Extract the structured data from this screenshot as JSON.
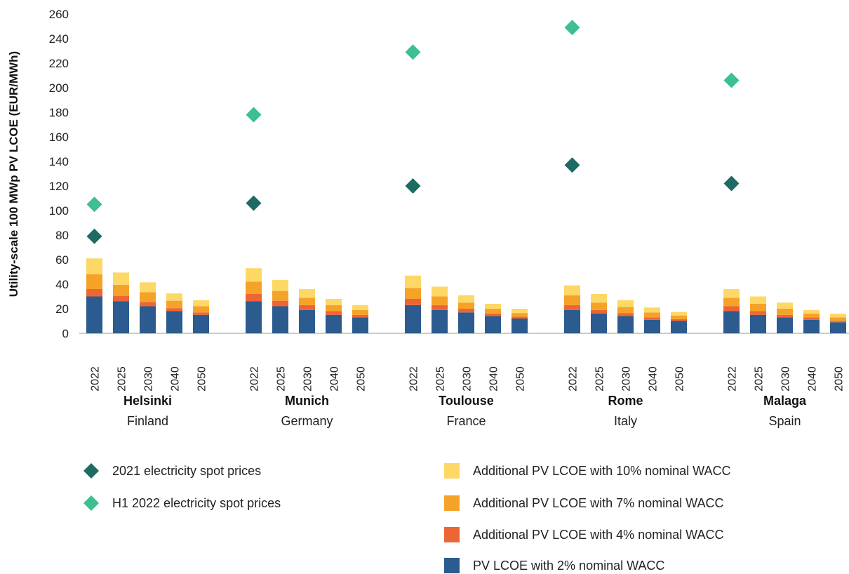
{
  "chart_data": {
    "type": "bar",
    "stacked": true,
    "ylabel": "Utility-scale 100 MWp PV LCOE (EUR/MWh)",
    "ylim": [
      0,
      260
    ],
    "yticks": [
      0,
      20,
      40,
      60,
      80,
      100,
      120,
      140,
      160,
      180,
      200,
      220,
      240,
      260
    ],
    "years": [
      "2022",
      "2025",
      "2030",
      "2040",
      "2050"
    ],
    "colors": {
      "base": "#2b5b8f",
      "add4": "#ee6535",
      "add7": "#f5a229",
      "add10": "#fdd867",
      "spot2021": "#1e6b64",
      "spotH1_2022": "#3dbf8f"
    },
    "groups": [
      {
        "city": "Helsinki",
        "country": "Finland",
        "base": [
          30,
          26,
          22,
          18,
          15
        ],
        "add4": [
          6,
          4.5,
          3.5,
          2.5,
          2
        ],
        "add7": [
          12,
          9,
          8,
          6,
          5
        ],
        "add10": [
          13,
          10,
          8,
          6,
          5
        ],
        "spot2021": 79,
        "spotH1_2022": 105
      },
      {
        "city": "Munich",
        "country": "Germany",
        "base": [
          26,
          22,
          19,
          15,
          13
        ],
        "add4": [
          6,
          4.5,
          4,
          3,
          2
        ],
        "add7": [
          10,
          8,
          6,
          5,
          4
        ],
        "add10": [
          11,
          9,
          7,
          5,
          4
        ],
        "spot2021": 106,
        "spotH1_2022": 178
      },
      {
        "city": "Toulouse",
        "country": "France",
        "base": [
          23,
          19,
          17,
          14,
          12
        ],
        "add4": [
          5,
          4,
          3,
          2,
          1.5
        ],
        "add7": [
          9,
          7,
          5,
          4,
          3
        ],
        "add10": [
          10,
          8,
          6,
          4,
          3.5
        ],
        "spot2021": 120,
        "spotH1_2022": 229
      },
      {
        "city": "Rome",
        "country": "Italy",
        "base": [
          19,
          16,
          14,
          11,
          10
        ],
        "add4": [
          4,
          3,
          2.5,
          2,
          1.5
        ],
        "add7": [
          8,
          6,
          5,
          4,
          3
        ],
        "add10": [
          8,
          7,
          5.5,
          4,
          3
        ],
        "spot2021": 137,
        "spotH1_2022": 249
      },
      {
        "city": "Malaga",
        "country": "Spain",
        "base": [
          18,
          15,
          13,
          11,
          9
        ],
        "add4": [
          4,
          3,
          2,
          2,
          1
        ],
        "add7": [
          7,
          6,
          5,
          3,
          3
        ],
        "add10": [
          7,
          6,
          5,
          3,
          3
        ],
        "spot2021": 122,
        "spotH1_2022": 206
      }
    ],
    "legend": {
      "spot2021": "2021 electricity spot prices",
      "spotH1_2022": "H1 2022 electricity spot prices",
      "add10": "Additional PV LCOE with 10% nominal WACC",
      "add7": "Additional PV LCOE with 7% nominal WACC",
      "add4": "Additional PV LCOE with 4% nominal WACC",
      "base": "PV LCOE with 2% nominal WACC"
    }
  }
}
